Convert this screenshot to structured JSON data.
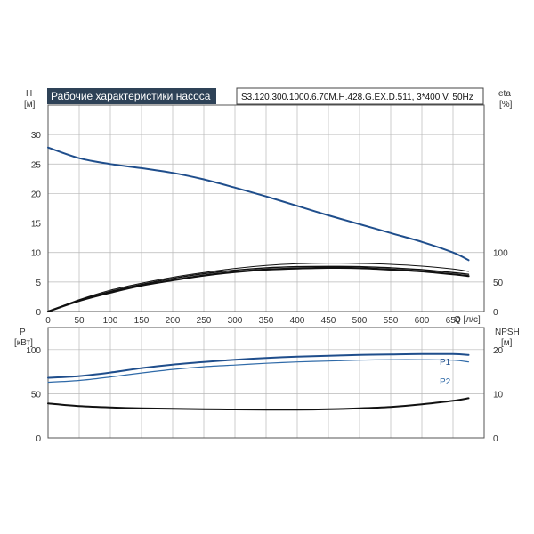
{
  "colors": {
    "head_curve": "#1f4e8c",
    "eff_curves": "#111111",
    "p1_curve": "#1f4e8c",
    "p2_curve": "#2f6aa8",
    "npsh_curve": "#111111",
    "grid": "#b8b8b8",
    "banner_bg": "#2e4257"
  },
  "chart_data": [
    {
      "type": "line",
      "title": "Рабочие характеристики насоса",
      "model": "S3.120.300.1000.6.70M.H.428.G.EX.D.511, 3*400 V, 50Hz",
      "xlabel": "Q [л/с]",
      "ylabel": "H",
      "ylabel_unit": "[м]",
      "y2label": "eta",
      "y2label_unit": "[%]",
      "xlim": [
        0,
        700
      ],
      "ylim": [
        0,
        35
      ],
      "y2lim": [
        0,
        350
      ],
      "xticks": [
        "0",
        "50",
        "100",
        "150",
        "200",
        "250",
        "300",
        "350",
        "400",
        "450",
        "500",
        "550",
        "600",
        "650"
      ],
      "yticks": [
        "0",
        "5",
        "10",
        "15",
        "20",
        "25",
        "30"
      ],
      "y2ticks": [
        "0",
        "50",
        "100"
      ],
      "grid": true,
      "series": [
        {
          "axis": "left",
          "x": [
            0,
            50,
            100,
            150,
            200,
            250,
            300,
            350,
            400,
            450,
            500,
            550,
            600,
            650,
            675
          ],
          "y": [
            27.8,
            26.0,
            25.0,
            24.3,
            23.5,
            22.4,
            21.0,
            19.5,
            17.9,
            16.3,
            14.8,
            13.3,
            11.8,
            10.0,
            8.7
          ]
        },
        {
          "axis": "right",
          "x": [
            0,
            50,
            100,
            150,
            200,
            250,
            300,
            350,
            400,
            450,
            500,
            550,
            600,
            650,
            675
          ],
          "y": [
            0,
            19,
            34,
            46,
            56,
            64,
            70,
            74,
            76,
            76.5,
            76,
            74,
            71,
            66,
            63
          ]
        },
        {
          "axis": "right",
          "x": [
            0,
            50,
            100,
            150,
            200,
            250,
            300,
            350,
            400,
            450,
            500,
            550,
            600,
            650,
            675
          ],
          "y": [
            0,
            18,
            32,
            44,
            53,
            61,
            67,
            71,
            73,
            74,
            73.5,
            71,
            68,
            63,
            60
          ]
        },
        {
          "axis": "right",
          "x": [
            0,
            50,
            100,
            150,
            200,
            250,
            300,
            350,
            400,
            450,
            500,
            550,
            600,
            650,
            675
          ],
          "y": [
            0,
            20,
            36,
            48,
            58,
            66,
            73,
            78,
            81,
            82,
            81.5,
            80,
            77,
            72,
            68
          ]
        }
      ]
    },
    {
      "type": "line",
      "xlim": [
        0,
        700
      ],
      "ylim": [
        0,
        125
      ],
      "y2lim": [
        0,
        25
      ],
      "ylabel": "P",
      "ylabel_unit": "[кВт]",
      "y2label": "NPSH",
      "y2label_unit": "[м]",
      "yticks": [
        "0",
        "50",
        "100"
      ],
      "y2ticks": [
        "0",
        "10",
        "20"
      ],
      "grid": true,
      "series": [
        {
          "name": "P1",
          "axis": "left",
          "x": [
            0,
            50,
            100,
            150,
            200,
            250,
            300,
            350,
            400,
            450,
            500,
            550,
            600,
            650,
            675
          ],
          "y": [
            68,
            70,
            74,
            79,
            83,
            86,
            88.5,
            90.5,
            92,
            93,
            94,
            94.5,
            95,
            95,
            94
          ]
        },
        {
          "name": "P2",
          "axis": "left",
          "x": [
            0,
            50,
            100,
            150,
            200,
            250,
            300,
            350,
            400,
            450,
            500,
            550,
            600,
            650,
            675
          ],
          "y": [
            63,
            65,
            69,
            73.5,
            77.5,
            80.5,
            82.5,
            84.5,
            86,
            87,
            88,
            88.5,
            88.5,
            88,
            86
          ]
        },
        {
          "axis": "right",
          "x": [
            0,
            50,
            100,
            150,
            200,
            250,
            300,
            350,
            400,
            450,
            500,
            550,
            600,
            650,
            675
          ],
          "y": [
            7.8,
            7.2,
            6.9,
            6.7,
            6.6,
            6.5,
            6.45,
            6.4,
            6.4,
            6.5,
            6.7,
            7.0,
            7.6,
            8.4,
            9.0
          ]
        }
      ]
    }
  ]
}
